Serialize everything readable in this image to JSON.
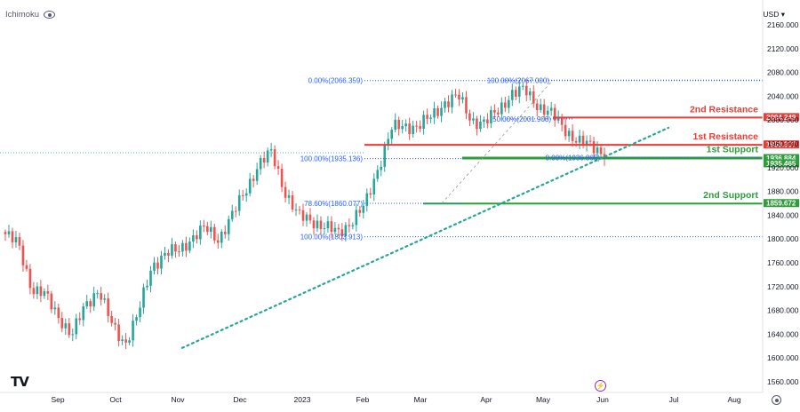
{
  "header": {
    "indicator": "Ichimoku",
    "eye_icon": "eye-icon",
    "currency": "USD"
  },
  "footer": {
    "logo": "TV",
    "event_icon": "lightning-icon",
    "settings_icon": "gear-icon"
  },
  "chart_data": {
    "type": "candlestick",
    "x_ticks": [
      "Sep",
      "Oct",
      "Nov",
      "Dec",
      "2023",
      "Feb",
      "Mar",
      "Apr",
      "May",
      "Jun",
      "Jul",
      "Aug"
    ],
    "y_ticks": [
      2160,
      2120,
      2080,
      2040,
      2000,
      1960,
      1920,
      1880,
      1840,
      1800,
      1760,
      1720,
      1680,
      1640,
      1600,
      1560
    ],
    "ylim": [
      1550,
      2175
    ],
    "grid": false,
    "colors": {
      "up": "#26a69a",
      "down": "#ef5350",
      "resistance": "#ef3b33",
      "support": "#2e9e3a",
      "fib": "#2962ff",
      "trend": "#26a69a"
    },
    "close_path": [
      [
        "Aug",
        1808
      ],
      [
        "Aug",
        1790
      ],
      [
        "Sep",
        1716
      ],
      [
        "Sep",
        1705
      ],
      [
        "Sep",
        1671
      ],
      [
        "Sep",
        1636
      ],
      [
        "Oct",
        1690
      ],
      [
        "Oct",
        1715
      ],
      [
        "Oct",
        1655
      ],
      [
        "Nov",
        1625
      ],
      [
        "Nov",
        1675
      ],
      [
        "Nov",
        1755
      ],
      [
        "Nov",
        1775
      ],
      [
        "Dec",
        1780
      ],
      [
        "Dec",
        1802
      ],
      [
        "Dec",
        1818
      ],
      [
        "Dec",
        1800
      ],
      [
        "2023",
        1838
      ],
      [
        "2023",
        1880
      ],
      [
        "2023",
        1925
      ],
      [
        "Feb",
        1945
      ],
      [
        "Feb",
        1880
      ],
      [
        "Feb",
        1838
      ],
      [
        "Feb",
        1832
      ],
      [
        "Feb",
        1820
      ],
      [
        "Feb",
        1810
      ],
      [
        "Mar",
        1830
      ],
      [
        "Mar",
        1855
      ],
      [
        "Mar",
        1920
      ],
      [
        "Mar",
        1985
      ],
      [
        "Mar",
        1990
      ],
      [
        "Apr",
        1990
      ],
      [
        "Apr",
        2005
      ],
      [
        "Apr",
        2030
      ],
      [
        "Apr",
        2040
      ],
      [
        "Apr",
        2000
      ],
      [
        "Apr",
        1995
      ],
      [
        "May",
        2015
      ],
      [
        "May",
        2045
      ],
      [
        "May",
        2050
      ],
      [
        "May",
        2025
      ],
      [
        "May",
        2010
      ],
      [
        "May",
        1985
      ],
      [
        "May",
        1965
      ],
      [
        "May",
        1955
      ],
      [
        "May",
        1945
      ]
    ],
    "levels": [
      {
        "label": "2nd Resistance",
        "value": "2004.249",
        "color": "red"
      },
      {
        "label": "1st Resistance",
        "value": "1958.337",
        "color": "red"
      },
      {
        "label": "1st Support",
        "value": "1936.884",
        "color": "green"
      },
      {
        "label": "",
        "value": "1935.465",
        "color": "green"
      },
      {
        "label": "2nd Support",
        "value": "1859.672",
        "color": "green"
      }
    ],
    "fib_upper": [
      {
        "label": "0.00%(2066.359)",
        "value": 2066.359
      },
      {
        "label": "100.00%(1935.136)",
        "value": 1935.136
      },
      {
        "label": "78.60%(1860.077)",
        "value": 1860.077
      },
      {
        "label": "100.00%(1803.913)",
        "value": 1803.913
      }
    ],
    "fib_lower": [
      {
        "label": "100.00%(2067.000)",
        "value": 2067.0
      },
      {
        "label": "50.00%(2001.908)",
        "value": 2001.908
      },
      {
        "label": "0.00%(1936.865)",
        "value": 1936.865
      }
    ]
  }
}
